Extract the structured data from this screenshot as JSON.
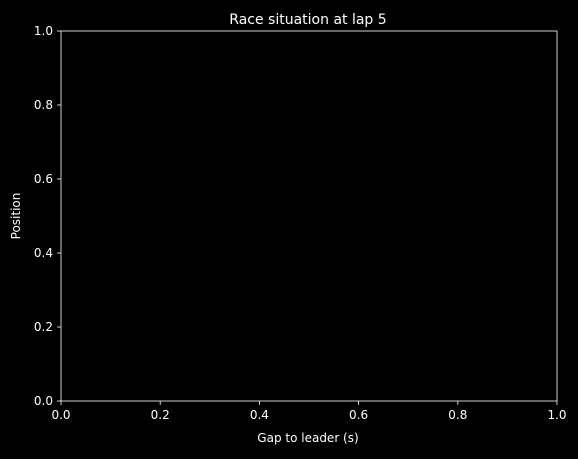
{
  "chart_data": {
    "type": "scatter",
    "title": "Race situation at lap 5",
    "xlabel": "Gap to leader (s)",
    "ylabel": "Position",
    "xlim": [
      0,
      1
    ],
    "ylim": [
      0,
      1
    ],
    "x_ticks": [
      "0.0",
      "0.2",
      "0.4",
      "0.6",
      "0.8",
      "1.0"
    ],
    "y_ticks": [
      "0.0",
      "0.2",
      "0.4",
      "0.6",
      "0.8",
      "1.0"
    ],
    "series": [],
    "grid": false,
    "background_color": "#000000",
    "foreground_color": "#ffffff"
  }
}
